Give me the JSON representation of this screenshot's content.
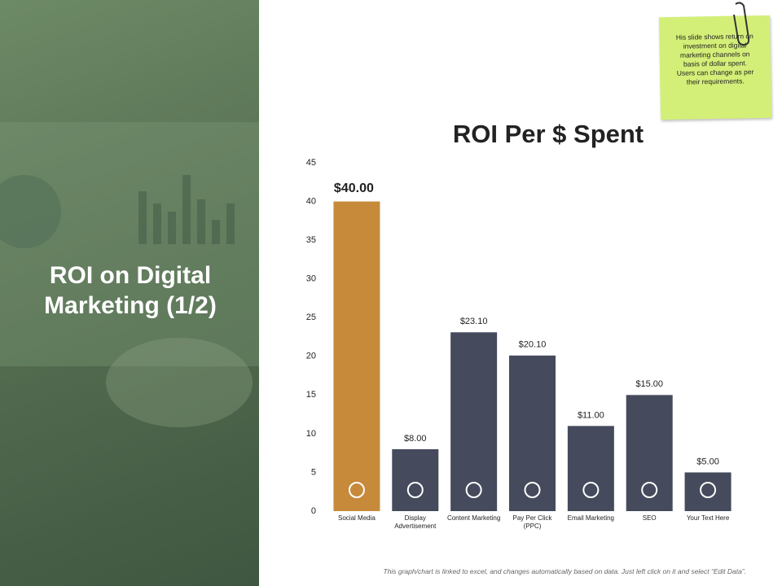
{
  "slide_title": "ROI on Digital Marketing (1/2)",
  "note": "His slide shows return on investment on digital marketing channels on basis of dollar spent. Users can change as per their requirements.",
  "footer": "This graph/chart is linked to excel, and changes automatically based on data. Just left click on it and select “Edit Data”.",
  "chart_data": {
    "type": "bar",
    "title": "ROI Per $ Spent",
    "categories": [
      "Social Media",
      "Display Advertisement",
      "Content Marketing",
      "Pay Per Click (PPC)",
      "Email Marketing",
      "SEO",
      "Your Text Here"
    ],
    "values": [
      40,
      8,
      23.1,
      20.1,
      11,
      15,
      5
    ],
    "value_labels": [
      "$40.00",
      "$8.00",
      "$23.10",
      "$20.10",
      "$11.00",
      "$15.00",
      "$5.00"
    ],
    "colors": [
      "#c68a3a",
      "#454a5c",
      "#454a5c",
      "#454a5c",
      "#454a5c",
      "#454a5c",
      "#454a5c"
    ],
    "ylim": [
      0,
      45
    ],
    "yticks": [
      0,
      5,
      10,
      15,
      20,
      25,
      30,
      35,
      40,
      45
    ],
    "grid": false
  }
}
